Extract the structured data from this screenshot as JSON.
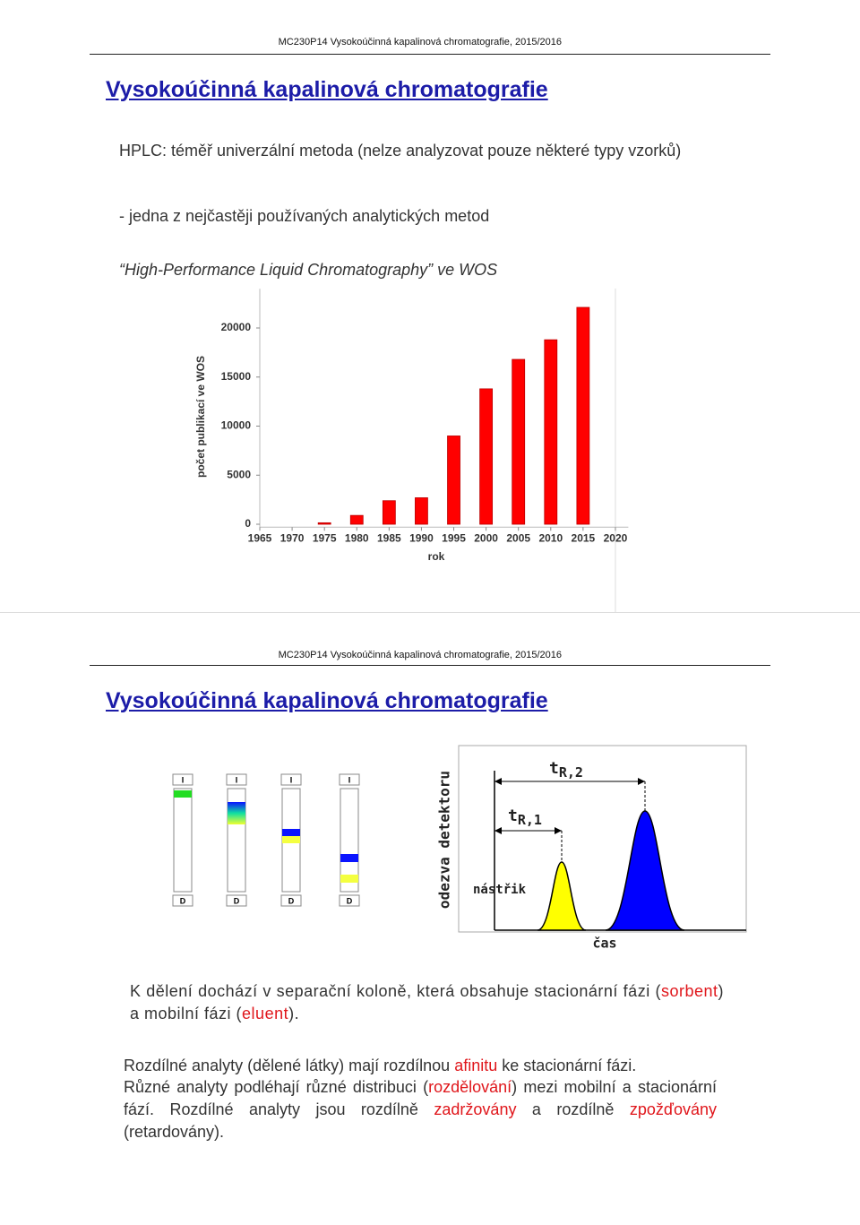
{
  "slide1": {
    "header": "MC230P14 Vysokoúčinná kapalinová chromatografie, 2015/2016",
    "title": "Vysokoúčinná kapalinová chromatografie",
    "paragraphs": [
      "HPLC: téměř univerzální metoda (nelze analyzovat pouze některé typy vzorků)",
      "- jedna z nejčastěji používaných analytických metod",
      "“High-Performance Liquid Chromatography” ve WOS"
    ]
  },
  "chart_data": {
    "type": "bar",
    "x_label": "rok",
    "y_label": "počet publikací ve WOS",
    "x": [
      1975,
      1980,
      1985,
      1990,
      1995,
      2000,
      2005,
      2010,
      2015
    ],
    "values": [
      150,
      900,
      2400,
      2700,
      9000,
      13800,
      16800,
      18800,
      22100
    ],
    "color": "#ff0000",
    "xlim": [
      1965,
      2022
    ],
    "xticks": [
      1965,
      1970,
      1975,
      1980,
      1985,
      1990,
      1995,
      2000,
      2005,
      2010,
      2015,
      2020
    ],
    "ylim": [
      -300,
      24000
    ],
    "yticks": [
      0,
      5000,
      10000,
      15000,
      20000
    ]
  },
  "slide2": {
    "header": "MC230P14 Vysokoúčinná kapalinová chromatografie, 2015/2016",
    "title": "Vysokoúčinná kapalinová chromatografie",
    "columns": [
      {
        "top": "I",
        "bottom": "D"
      },
      {
        "top": "I",
        "bottom": "D"
      },
      {
        "top": "I",
        "bottom": "D"
      },
      {
        "top": "I",
        "bottom": "D"
      }
    ],
    "chromatogram": {
      "y_label": "odezva detektoru",
      "x_label": "čas",
      "injection": "nástřik",
      "tr2": {
        "main": "t",
        "sub": "R,2"
      },
      "tr1": {
        "main": "t",
        "sub": "R,1"
      }
    },
    "paragraphs": [
      {
        "runs": [
          {
            "text": "K dělení dochází v separační koloně, která obsahuje stacionární fázi ("
          },
          {
            "text": "sorbent",
            "color": "#e0161b"
          },
          {
            "text": ") a mobilní fázi ("
          },
          {
            "text": "eluent",
            "color": "#e0161b"
          },
          {
            "text": ")."
          }
        ]
      },
      {
        "runs": [
          {
            "text": "Rozdílné analyty (dělené látky) mají rozdílnou "
          },
          {
            "text": "afinitu",
            "color": "#e0161b"
          },
          {
            "text": " ke stacionární fázi."
          }
        ]
      },
      {
        "runs": [
          {
            "text": "Různé analyty podléhají různé distribuci ("
          },
          {
            "text": "rozdělování",
            "color": "#e0161b"
          },
          {
            "text": ") mezi mobilní a stacionární fází. Rozdílné analyty jsou rozdílně "
          },
          {
            "text": "zadržovány",
            "color": "#e0161b"
          },
          {
            "text": " a rozdílně "
          },
          {
            "text": "zpožďovány",
            "color": "#e0161b"
          },
          {
            "text": " (retardovány)."
          }
        ]
      }
    ]
  }
}
